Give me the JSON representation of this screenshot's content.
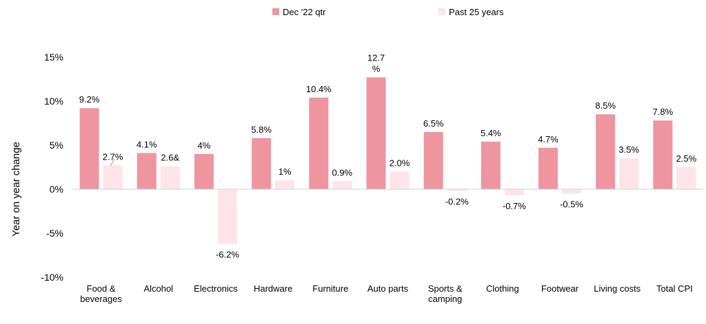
{
  "chart_data": {
    "type": "bar",
    "title": "",
    "xlabel": "",
    "ylabel": "Year on year change",
    "ylim": [
      -10,
      15
    ],
    "yticks": [
      {
        "value": 15,
        "label": "15%"
      },
      {
        "value": 10,
        "label": "10%"
      },
      {
        "value": 5,
        "label": "5%"
      },
      {
        "value": 0,
        "label": "0%"
      },
      {
        "value": -5,
        "label": "-5%"
      },
      {
        "value": -10,
        "label": "-10%"
      }
    ],
    "grid": false,
    "legend_position": "top-center",
    "categories": [
      [
        "Food &",
        "beverages"
      ],
      [
        "Alcohol"
      ],
      [
        "Electronics"
      ],
      [
        "Hardware"
      ],
      [
        "Furniture"
      ],
      [
        "Auto parts"
      ],
      [
        "Sports &",
        "camping"
      ],
      [
        "Clothing"
      ],
      [
        "Footwear"
      ],
      [
        "Living costs"
      ],
      [
        "Total CPI"
      ]
    ],
    "series": [
      {
        "name": "Dec '22 qtr",
        "color": "#ee959f",
        "values": [
          9.2,
          4.1,
          4.0,
          5.8,
          10.4,
          12.7,
          6.5,
          5.4,
          4.7,
          8.5,
          7.8
        ],
        "labels": [
          [
            "9.2%"
          ],
          [
            "4.1%"
          ],
          [
            "4%"
          ],
          [
            "5.8%"
          ],
          [
            "10.4%"
          ],
          [
            "12.7",
            "%"
          ],
          [
            "6.5%"
          ],
          [
            "5.4%"
          ],
          [
            "4.7%"
          ],
          [
            "8.5%"
          ],
          [
            "7.8%"
          ]
        ]
      },
      {
        "name": "Past 25 years",
        "color": "#fce4e7",
        "values": [
          2.7,
          2.6,
          -6.2,
          1.0,
          0.9,
          2.0,
          -0.2,
          -0.7,
          -0.5,
          3.5,
          2.5
        ],
        "labels": [
          [
            "2.7%"
          ],
          [
            "2.6&"
          ],
          [
            "-6.2%"
          ],
          [
            "1%"
          ],
          [
            "0.9%"
          ],
          [
            "2.0%"
          ],
          [
            "-0.2%"
          ],
          [
            "-0.7%"
          ],
          [
            "-0.5%"
          ],
          [
            "3.5%"
          ],
          [
            "2.5%"
          ]
        ]
      }
    ]
  }
}
